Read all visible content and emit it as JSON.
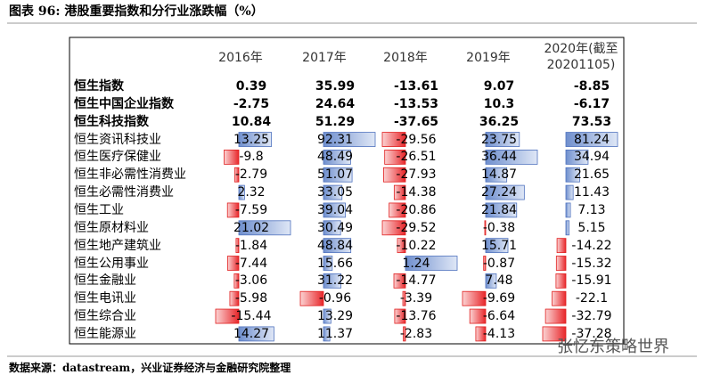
{
  "title": "图表 96: 港股重要指数和分行业涨跌幅（%）",
  "table": {
    "header": [
      "2016年",
      "2017年",
      "2018年",
      "2019年",
      "2020年(截至20201105)"
    ],
    "rows": [
      [
        "恒生指数",
        0.39,
        35.99,
        -13.61,
        9.07,
        -8.85
      ],
      [
        "恒生中国企业指数",
        -2.75,
        24.64,
        -13.53,
        10.3,
        -6.17
      ],
      [
        "恒生科技指数",
        10.84,
        51.29,
        -37.65,
        36.25,
        73.53
      ],
      [
        "恒生资讯科技业",
        13.25,
        92.31,
        -29.56,
        23.75,
        81.24
      ],
      [
        "恒生医疗保健业",
        -9.8,
        48.49,
        -26.51,
        36.44,
        34.94
      ],
      [
        "恒生非必需性消费业",
        -2.79,
        51.07,
        -27.93,
        14.87,
        21.65
      ],
      [
        "恒生必需性消费业",
        2.32,
        33.05,
        -14.38,
        27.24,
        11.43
      ],
      [
        "恒生工业",
        -7.59,
        39.04,
        -20.86,
        21.84,
        7.13
      ],
      [
        "恒生原材料业",
        21.02,
        30.49,
        -29.52,
        -0.38,
        5.15
      ],
      [
        "恒生地产建筑业",
        -1.84,
        48.84,
        -10.22,
        15.71,
        -14.22
      ],
      [
        "恒生公用事业",
        -7.44,
        15.66,
        1.24,
        -0.87,
        -15.32
      ],
      [
        "恒生金融业",
        -3.06,
        31.22,
        -14.77,
        7.48,
        -15.91
      ],
      [
        "恒生电讯业",
        -5.98,
        -0.96,
        -3.39,
        -9.69,
        -22.1
      ],
      [
        "恒生综合业",
        -15.44,
        13.29,
        -13.76,
        -6.64,
        -32.79
      ],
      [
        "恒生能源业",
        14.27,
        11.37,
        -2.83,
        -4.13,
        -37.28
      ]
    ]
  },
  "source": "数据来源：datastream，兴业证券经济与金融研究院整理",
  "watermark": "张忆东策略世界"
}
